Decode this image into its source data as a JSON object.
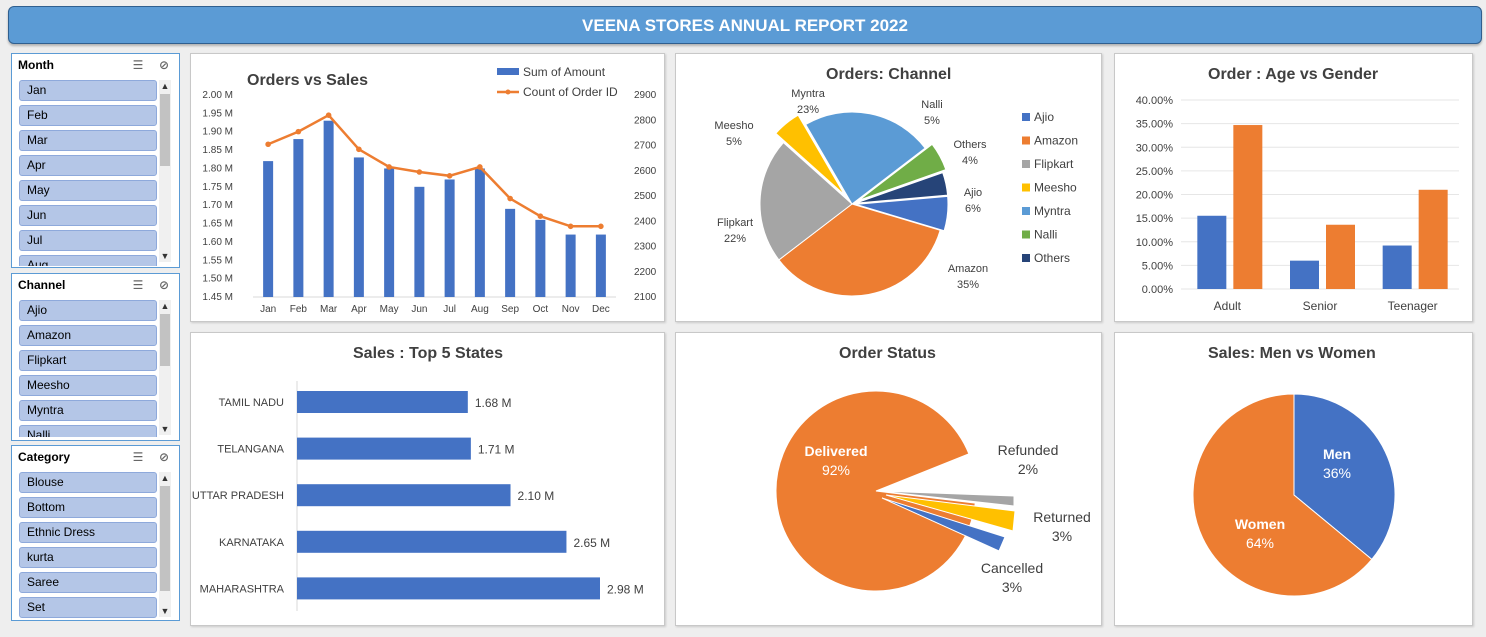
{
  "report": {
    "title": "VEENA STORES ANNUAL  REPORT 2022"
  },
  "slicers": {
    "month": {
      "title": "Month",
      "items": [
        "Jan",
        "Feb",
        "Mar",
        "Apr",
        "May",
        "Jun",
        "Jul",
        "Aug"
      ]
    },
    "channel": {
      "title": "Channel",
      "items": [
        "Ajio",
        "Amazon",
        "Flipkart",
        "Meesho",
        "Myntra",
        "Nalli"
      ]
    },
    "category": {
      "title": "Category",
      "items": [
        "Blouse",
        "Bottom",
        "Ethnic Dress",
        "kurta",
        "Saree",
        "Set"
      ]
    },
    "icons": {
      "multiselect": "multi-select-icon",
      "clearfilter": "clear-filter-icon",
      "up": "scroll-up-icon",
      "down": "scroll-down-icon"
    }
  },
  "colors": {
    "blue": "#4472c4",
    "orange": "#ed7d31",
    "gray": "#a5a5a5",
    "yellow": "#ffc000",
    "lightblue": "#5b9bd5",
    "green": "#70ad47",
    "navy": "#264478",
    "header": "#5b9bd5"
  },
  "charts": {
    "orders_sales": {
      "title": "Orders vs Sales",
      "legend": {
        "sum": "Sum of Amount",
        "count": "Count of Order ID"
      },
      "yleft_ticks": [
        "1.45 M",
        "1.50 M",
        "1.55 M",
        "1.60 M",
        "1.65 M",
        "1.70 M",
        "1.75 M",
        "1.80 M",
        "1.85 M",
        "1.90 M",
        "1.95 M",
        "2.00 M"
      ],
      "yright_ticks": [
        "2100",
        "2200",
        "2300",
        "2400",
        "2500",
        "2600",
        "2700",
        "2800",
        "2900"
      ]
    },
    "channel": {
      "title": "Orders: Channel"
    },
    "age_gender": {
      "title": "Order : Age vs Gender",
      "yticks": [
        "0.00%",
        "5.00%",
        "10.00%",
        "15.00%",
        "20.00%",
        "25.00%",
        "30.00%",
        "35.00%",
        "40.00%"
      ]
    },
    "states": {
      "title": "Sales : Top 5 States"
    },
    "status": {
      "title": "Order Status"
    },
    "men_women": {
      "title": "Sales: Men vs Women"
    }
  },
  "chart_data": [
    {
      "type": "bar+line",
      "title": "Orders vs Sales",
      "categories": [
        "Jan",
        "Feb",
        "Mar",
        "Apr",
        "May",
        "Jun",
        "Jul",
        "Aug",
        "Sep",
        "Oct",
        "Nov",
        "Dec"
      ],
      "series": [
        {
          "name": "Sum of Amount",
          "axis": "left",
          "values": [
            1.82,
            1.88,
            1.93,
            1.83,
            1.8,
            1.75,
            1.77,
            1.8,
            1.69,
            1.66,
            1.62,
            1.62
          ]
        },
        {
          "name": "Count of Order ID",
          "axis": "right",
          "values": [
            2705,
            2755,
            2820,
            2685,
            2615,
            2595,
            2580,
            2615,
            2490,
            2420,
            2380,
            2380
          ]
        }
      ],
      "ylim_left": [
        1.45,
        2.0
      ],
      "ylim_right": [
        2100,
        2900
      ],
      "legend": "top-right"
    },
    {
      "type": "pie",
      "title": "Orders: Channel",
      "slices": [
        {
          "name": "Ajio",
          "value": 6,
          "label": "6%"
        },
        {
          "name": "Amazon",
          "value": 35,
          "label": "35%"
        },
        {
          "name": "Flipkart",
          "value": 22,
          "label": "22%"
        },
        {
          "name": "Meesho",
          "value": 5,
          "label": "5%"
        },
        {
          "name": "Myntra",
          "value": 23,
          "label": "23%"
        },
        {
          "name": "Nalli",
          "value": 5,
          "label": "5%"
        },
        {
          "name": "Others",
          "value": 4,
          "label": "4%"
        }
      ],
      "legend": "right"
    },
    {
      "type": "bar",
      "title": "Order : Age vs Gender",
      "categories": [
        "Adult",
        "Senior",
        "Teenager"
      ],
      "series": [
        {
          "values": [
            15.5,
            6.0,
            9.2
          ]
        },
        {
          "values": [
            34.7,
            13.6,
            21.0
          ]
        }
      ],
      "ylim": [
        0,
        40
      ]
    },
    {
      "type": "bar",
      "orientation": "horizontal",
      "title": "Sales : Top 5 States",
      "categories": [
        "TAMIL NADU",
        "TELANGANA",
        "UTTAR PRADESH",
        "KARNATAKA",
        "MAHARASHTRA"
      ],
      "values": [
        1.68,
        1.71,
        2.1,
        2.65,
        2.98
      ],
      "labels": [
        "1.68 M",
        "1.71 M",
        "2.10 M",
        "2.65 M",
        "2.98 M"
      ]
    },
    {
      "type": "pie",
      "title": "Order Status",
      "slices": [
        {
          "name": "Delivered",
          "value": 92,
          "label": "92%"
        },
        {
          "name": "Refunded",
          "value": 2,
          "label": "2%"
        },
        {
          "name": "Returned",
          "value": 3,
          "label": "3%"
        },
        {
          "name": "Cancelled",
          "value": 3,
          "label": "3%"
        }
      ]
    },
    {
      "type": "pie",
      "title": "Sales: Men vs Women",
      "slices": [
        {
          "name": "Men",
          "value": 36,
          "label": "36%"
        },
        {
          "name": "Women",
          "value": 64,
          "label": "64%"
        }
      ]
    }
  ]
}
